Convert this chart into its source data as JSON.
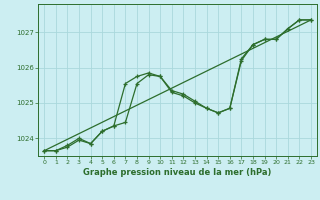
{
  "title": "Graphe pression niveau de la mer (hPa)",
  "bg_color": "#cceef2",
  "grid_color": "#aad8dc",
  "line_color": "#2d6e2d",
  "xlim": [
    -0.5,
    23.5
  ],
  "ylim": [
    1023.5,
    1027.8
  ],
  "yticks": [
    1024,
    1025,
    1026,
    1027
  ],
  "xticks": [
    0,
    1,
    2,
    3,
    4,
    5,
    6,
    7,
    8,
    9,
    10,
    11,
    12,
    13,
    14,
    15,
    16,
    17,
    18,
    19,
    20,
    21,
    22,
    23
  ],
  "series1": [
    1023.65,
    1023.65,
    1023.75,
    1023.95,
    1023.85,
    1024.2,
    1024.35,
    1024.45,
    1025.55,
    1025.8,
    1025.75,
    1025.35,
    1025.25,
    1025.05,
    1024.85,
    1024.72,
    1024.85,
    1026.25,
    1026.65,
    1026.8,
    1026.8,
    1027.1,
    1027.35,
    1027.35
  ],
  "series2": [
    1023.65,
    1023.65,
    1023.8,
    1024.0,
    1023.85,
    1024.2,
    1024.35,
    1025.55,
    1025.75,
    1025.85,
    1025.75,
    1025.3,
    1025.2,
    1025.0,
    1024.85,
    1024.72,
    1024.85,
    1026.2,
    1026.65,
    1026.8,
    1026.8,
    1027.1,
    1027.35,
    1027.35
  ],
  "trend_x": [
    0,
    23
  ],
  "trend_y": [
    1023.65,
    1027.35
  ]
}
